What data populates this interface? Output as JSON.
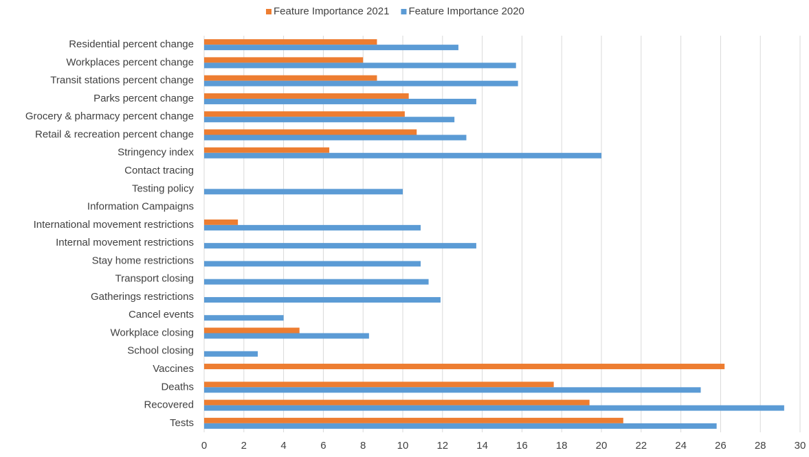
{
  "chart_data": {
    "type": "hbar",
    "categories": [
      "Residential percent change",
      "Workplaces percent change",
      "Transit stations percent change",
      "Parks percent change",
      "Grocery & pharmacy percent change",
      "Retail & recreation percent change",
      "Stringency index",
      "Contact tracing",
      "Testing policy",
      "Information Campaigns",
      "International movement restrictions",
      "Internal movement restrictions",
      "Stay home restrictions",
      "Transport closing",
      "Gatherings restrictions",
      "Cancel events",
      "Workplace closing",
      "School closing",
      "Vaccines",
      "Deaths",
      "Recovered",
      "Tests"
    ],
    "series": [
      {
        "name": "Feature Importance 2021",
        "color": "#ed7d31",
        "values": [
          8.7,
          8.0,
          8.7,
          10.3,
          10.1,
          10.7,
          6.3,
          null,
          null,
          null,
          1.7,
          null,
          null,
          null,
          null,
          null,
          4.8,
          null,
          26.2,
          17.6,
          19.4,
          21.1
        ]
      },
      {
        "name": "Feature Importance 2020",
        "color": "#5b9bd5",
        "values": [
          12.8,
          15.7,
          15.8,
          13.7,
          12.6,
          13.2,
          20.0,
          null,
          10.0,
          null,
          10.9,
          13.7,
          10.9,
          11.3,
          11.9,
          4.0,
          8.3,
          2.7,
          null,
          25.0,
          29.2,
          25.8
        ]
      }
    ],
    "xlim": [
      0,
      30
    ],
    "xticks": [
      0,
      2,
      4,
      6,
      8,
      10,
      12,
      14,
      16,
      18,
      20,
      22,
      24,
      26,
      28,
      30
    ],
    "grid": true,
    "legend": "top"
  }
}
